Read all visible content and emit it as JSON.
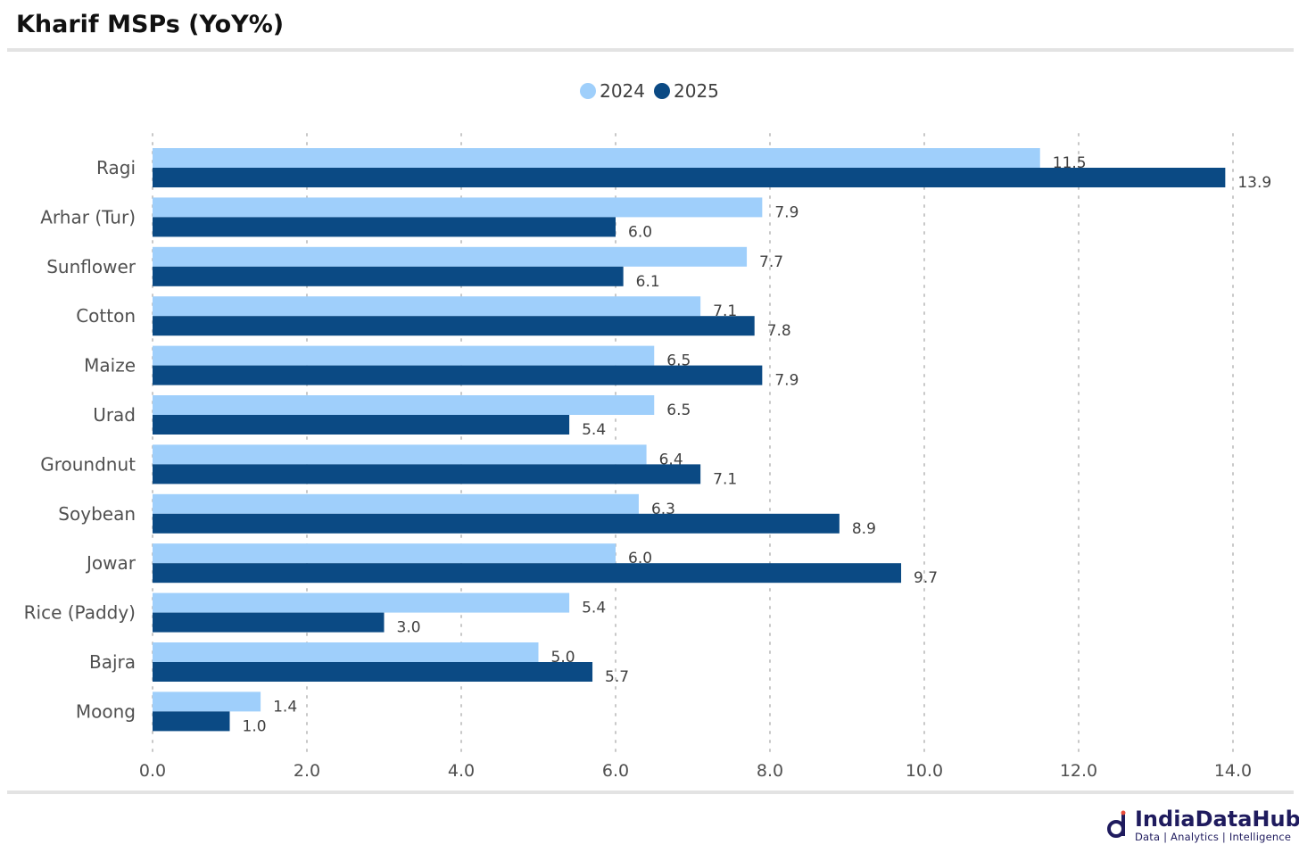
{
  "page": {
    "title": "Kharif MSPs (YoY%)"
  },
  "brand": {
    "name": "IndiaDataHub",
    "tagline": "Data | Analytics | Intelligence"
  },
  "chart_data": {
    "type": "bar",
    "orientation": "horizontal",
    "categories": [
      "Ragi",
      "Arhar (Tur)",
      "Sunflower",
      "Cotton",
      "Maize",
      "Urad",
      "Groundnut",
      "Soybean",
      "Jowar",
      "Rice (Paddy)",
      "Bajra",
      "Moong"
    ],
    "series": [
      {
        "name": "2024",
        "color": "#9fcffb",
        "values": [
          11.5,
          7.9,
          7.7,
          7.1,
          6.5,
          6.5,
          6.4,
          6.3,
          6.0,
          5.4,
          5.0,
          1.4
        ]
      },
      {
        "name": "2025",
        "color": "#0b4a84",
        "values": [
          13.9,
          6.0,
          6.1,
          7.8,
          7.9,
          5.4,
          7.1,
          8.9,
          9.7,
          3.0,
          5.7,
          1.0
        ]
      }
    ],
    "xlim": [
      0,
      14
    ],
    "xticks": [
      "0.0",
      "2.0",
      "4.0",
      "6.0",
      "8.0",
      "10.0",
      "12.0",
      "14.0"
    ],
    "grid": "vertical dotted",
    "legend": "top-center",
    "data_labels": true
  }
}
